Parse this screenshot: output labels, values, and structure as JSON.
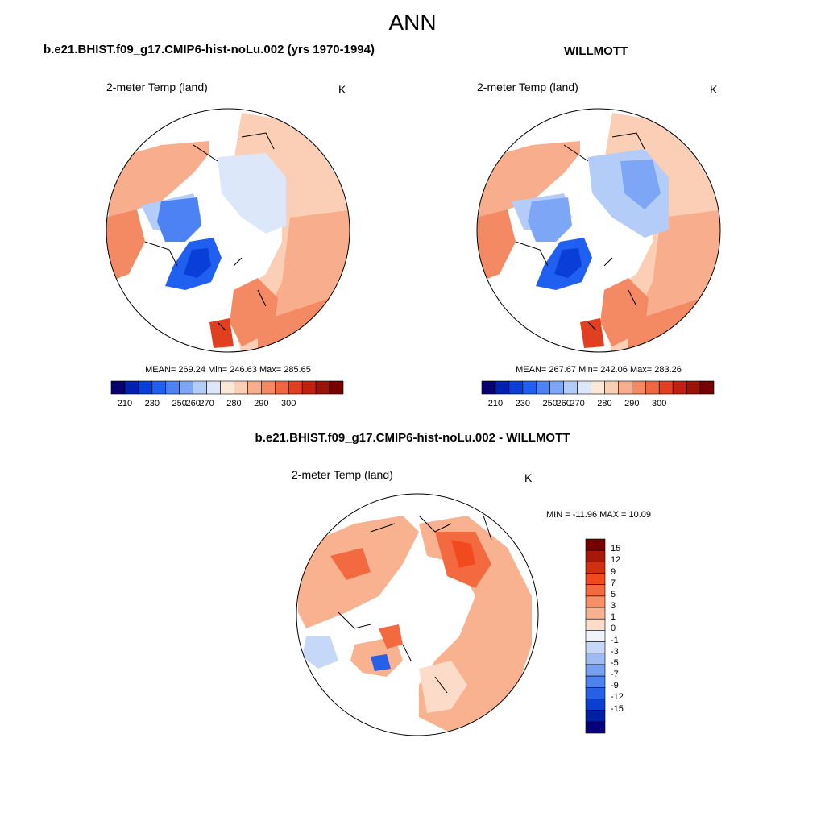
{
  "figure": {
    "title": "ANN",
    "units": "K",
    "variable": "2-meter Temp (land)"
  },
  "panels": [
    {
      "id": "model",
      "title": "b.e21.BHIST.f09_g17.CMIP6-hist-noLu.002 (yrs 1970-1994)",
      "variable": "2-meter Temp (land)",
      "units": "K",
      "stats_text": "MEAN= 269.24  Min= 246.63  Max= 285.65",
      "mean": 269.24,
      "min": 246.63,
      "max": 285.65
    },
    {
      "id": "obs",
      "title": "WILLMOTT",
      "variable": "2-meter Temp (land)",
      "units": "K",
      "stats_text": "MEAN= 267.67  Min= 242.06  Max= 283.26",
      "mean": 267.67,
      "min": 242.06,
      "max": 283.26
    },
    {
      "id": "diff",
      "title": "b.e21.BHIST.f09_g17.CMIP6-hist-noLu.002 - WILLMOTT",
      "variable": "2-meter Temp (land)",
      "units": "K",
      "stats_text": "MIN = -11.96 MAX =  10.09",
      "min": -11.96,
      "max": 10.09
    }
  ],
  "colorbars": {
    "absolute": {
      "labels": [
        "210",
        "230",
        "250",
        "260",
        "270",
        "280",
        "290",
        "300"
      ],
      "colors": [
        "#08006e",
        "#0020b0",
        "#0a3ed8",
        "#2060f0",
        "#4c82f4",
        "#7ea6f6",
        "#b4ccf8",
        "#dce8fa",
        "#fde8d8",
        "#fbcfb6",
        "#f8ad8c",
        "#f48a64",
        "#ef6640",
        "#e04020",
        "#c02010",
        "#9a1208",
        "#760000"
      ]
    },
    "difference": {
      "labels": [
        "15",
        "12",
        "9",
        "7",
        "5",
        "3",
        "1",
        "0",
        "-1",
        "-3",
        "-5",
        "-7",
        "-9",
        "-12",
        "-15"
      ],
      "colors": [
        "#760000",
        "#a81806",
        "#d03010",
        "#f04a1e",
        "#f46a40",
        "#f68e66",
        "#f8b290",
        "#fcdcc8",
        "#eef3fc",
        "#c6d8f8",
        "#9ebcf4",
        "#76a0f0",
        "#4e82ee",
        "#2660e8",
        "#0a3ed0",
        "#0020a4",
        "#08007a"
      ]
    }
  }
}
